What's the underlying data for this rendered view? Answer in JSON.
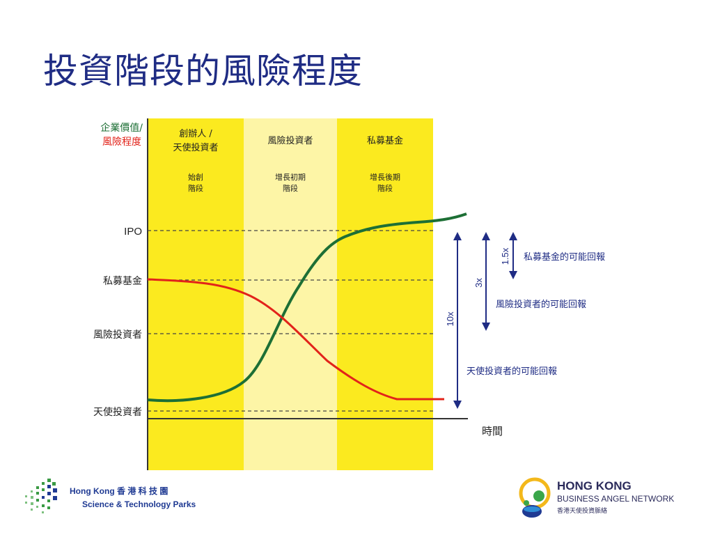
{
  "slide": {
    "title": "投資階段的風險程度"
  },
  "diagram": {
    "y_axis_label_1": "企業價值/",
    "y_axis_label_2": "風險程度",
    "x_axis_label": "時間",
    "stages": [
      {
        "name_line1": "創辦人 /",
        "name_line2": "天使投資者",
        "phase_line1": "始創",
        "phase_line2": "階段"
      },
      {
        "name_line1": "風險投資者",
        "name_line2": "",
        "phase_line1": "增長初期",
        "phase_line2": "階段"
      },
      {
        "name_line1": "私募基金",
        "name_line2": "",
        "phase_line1": "增長後期",
        "phase_line2": "階段"
      }
    ],
    "levels": [
      "IPO",
      "私募基金",
      "風險投資者",
      "天使投資者"
    ],
    "returns": [
      {
        "multiplier": "1.5x",
        "label": "私募基金的可能回報"
      },
      {
        "multiplier": "3x",
        "label": "風險投資者的可能回報"
      },
      {
        "multiplier": "10x",
        "label": "天使投資者的可能回報"
      }
    ],
    "colors": {
      "stage_dark": "#fbea1f",
      "stage_light": "#fdf5a6",
      "value_curve": "#1d6f35",
      "risk_curve": "#e2231a",
      "arrow": "#1f2c84",
      "axis_label_value": "#1d6f35",
      "axis_label_risk": "#e2231a"
    }
  },
  "logos": {
    "left_line1": "Hong Kong 香 港 科 技 園",
    "left_line2": "Science & Technology Parks",
    "right_line1": "HONG KONG",
    "right_line2": "BUSINESS ANGEL NETWORK",
    "right_line3": "香港天使投資脈絡"
  }
}
